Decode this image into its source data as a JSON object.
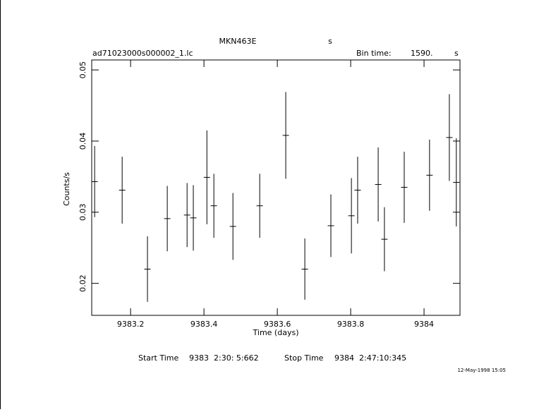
{
  "chart_data": {
    "type": "errorbar",
    "title": "MKN463E",
    "title_unit": "s",
    "file_name": "ad71023000s000002_1.lc",
    "bin_time_label": "Bin time:",
    "bin_time": "1590.",
    "bin_time_unit": "s",
    "x_label": "Time (days)",
    "y_label": "Counts/s",
    "start_time_label": "Start Time",
    "start_time": "9383  2:30: 5:662",
    "stop_time_label": "Stop Time",
    "stop_time": "9384  2:47:10:345",
    "date_stamp": "12-May-1998 15:05",
    "color": "#000000",
    "xlim": [
      9383.094,
      9384.098
    ],
    "ylim": [
      0.0155,
      0.0514
    ],
    "xticks": [
      9383.2,
      9383.4,
      9383.6,
      9383.8,
      9384
    ],
    "yticks": [
      0.02,
      0.03,
      0.04,
      0.05
    ],
    "x": [
      9383.102,
      9383.177,
      9383.246,
      9383.3,
      9383.354,
      9383.371,
      9383.408,
      9383.427,
      9383.479,
      9383.552,
      9383.623,
      9383.675,
      9383.746,
      9383.802,
      9383.819,
      9383.875,
      9383.892,
      9383.946,
      9384.015,
      9384.069,
      9384.088
    ],
    "values": [
      0.0343,
      0.0331,
      0.022,
      0.0291,
      0.0296,
      0.0292,
      0.0349,
      0.0309,
      0.028,
      0.0309,
      0.0408,
      0.022,
      0.0281,
      0.0295,
      0.0331,
      0.0339,
      0.0262,
      0.0335,
      0.0352,
      0.0405,
      0.0342
    ],
    "errors": [
      0.005,
      0.0047,
      0.0046,
      0.0046,
      0.0045,
      0.0046,
      0.0066,
      0.0045,
      0.0047,
      0.0045,
      0.0061,
      0.0043,
      0.0044,
      0.0053,
      0.0047,
      0.0052,
      0.0045,
      0.005,
      0.005,
      0.0061,
      0.0062
    ]
  }
}
